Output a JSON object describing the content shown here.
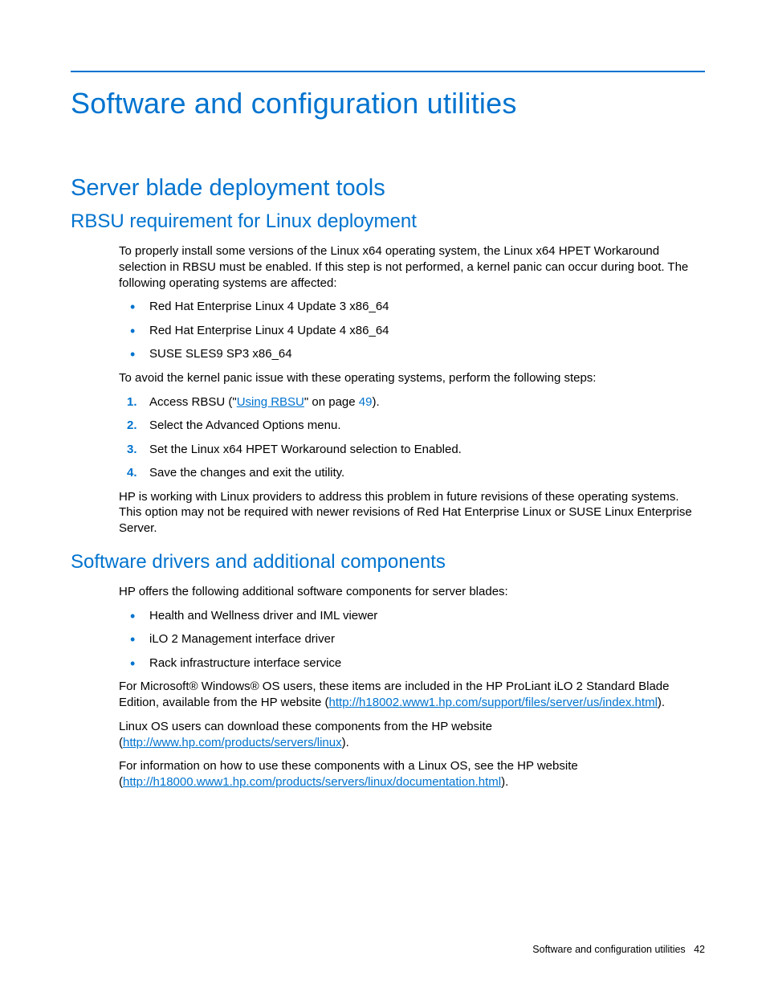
{
  "colors": {
    "accent": "#0073cf",
    "text": "#000000",
    "rule": "#0073cf",
    "link": "#0073cf",
    "bullet": "#0073cf",
    "step_num": "#0073cf"
  },
  "typography": {
    "h1_size": 36,
    "h2_size": 29,
    "h3_size": 24,
    "body_size": 15,
    "footer_size": 12.5
  },
  "title": "Software and configuration utilities",
  "h2_a": "Server blade deployment tools",
  "h3_a": "RBSU requirement for Linux deployment",
  "para_intro": "To properly install some versions of the Linux x64 operating system, the Linux x64 HPET Workaround selection in RBSU must be enabled. If this step is not performed, a kernel panic can occur during boot. The following operating systems are affected:",
  "os_list": [
    "Red Hat Enterprise Linux 4 Update 3 x86_64",
    "Red Hat Enterprise Linux 4 Update 4 x86_64",
    "SUSE SLES9 SP3 x86_64"
  ],
  "para_avoid": "To avoid the kernel panic issue with these operating systems, perform the following steps:",
  "step1_pre": "Access RBSU (\"",
  "step1_link": "Using RBSU",
  "step1_mid": "\" on page ",
  "step1_page": "49",
  "step1_post": ").",
  "steps_rest": [
    "Select the Advanced Options menu.",
    "Set the Linux x64 HPET Workaround selection to Enabled.",
    "Save the changes and exit the utility."
  ],
  "para_hp_working": "HP is working with Linux providers to address this problem in future revisions of these operating systems. This option may not be required with newer revisions of Red Hat Enterprise Linux or SUSE Linux Enterprise Server.",
  "h3_b": "Software drivers and additional components",
  "para_offers": "HP offers the following additional software components for server blades:",
  "components": [
    "Health and Wellness driver and IML viewer",
    "iLO 2 Management interface driver",
    "Rack infrastructure interface service"
  ],
  "ms_para_pre": "For Microsoft® Windows® OS users, these items are included in the HP ProLiant iLO 2 Standard Blade Edition, available from the HP website (",
  "ms_link": "http://h18002.www1.hp.com/support/files/server/us/index.html",
  "ms_para_post": ").",
  "linux_dl_pre": "Linux OS users can download these components from the HP website (",
  "linux_dl_link": "http://www.hp.com/products/servers/linux",
  "linux_dl_post": ").",
  "linux_info_pre": "For information on how to use these components with a Linux OS, see the HP website (",
  "linux_info_link": "http://h18000.www1.hp.com/products/servers/linux/documentation.html",
  "linux_info_post": ").",
  "footer_label": "Software and configuration utilities",
  "footer_page": "42"
}
